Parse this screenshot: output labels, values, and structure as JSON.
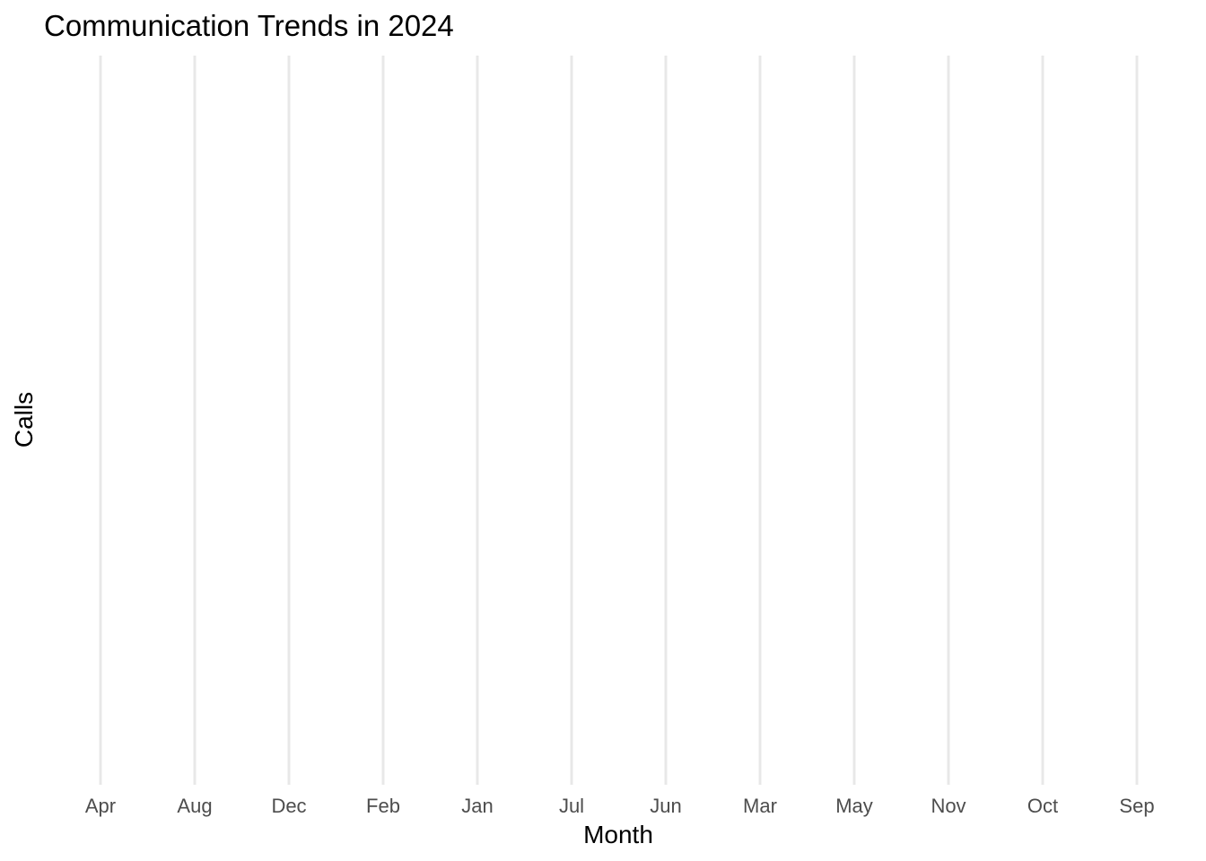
{
  "chart_data": {
    "type": "line",
    "title": "Communication Trends in 2024",
    "xlabel": "Month",
    "ylabel": "Calls",
    "categories": [
      "Apr",
      "Aug",
      "Dec",
      "Feb",
      "Jan",
      "Jul",
      "Jun",
      "Mar",
      "May",
      "Nov",
      "Oct",
      "Sep"
    ],
    "series": [],
    "grid": {
      "x_major": true,
      "y_major": false
    },
    "legend": "none",
    "colors": {
      "background": "#ffffff",
      "grid": "#e8e8e8",
      "tick_text": "#4d4d4d",
      "title_text": "#000000"
    }
  }
}
